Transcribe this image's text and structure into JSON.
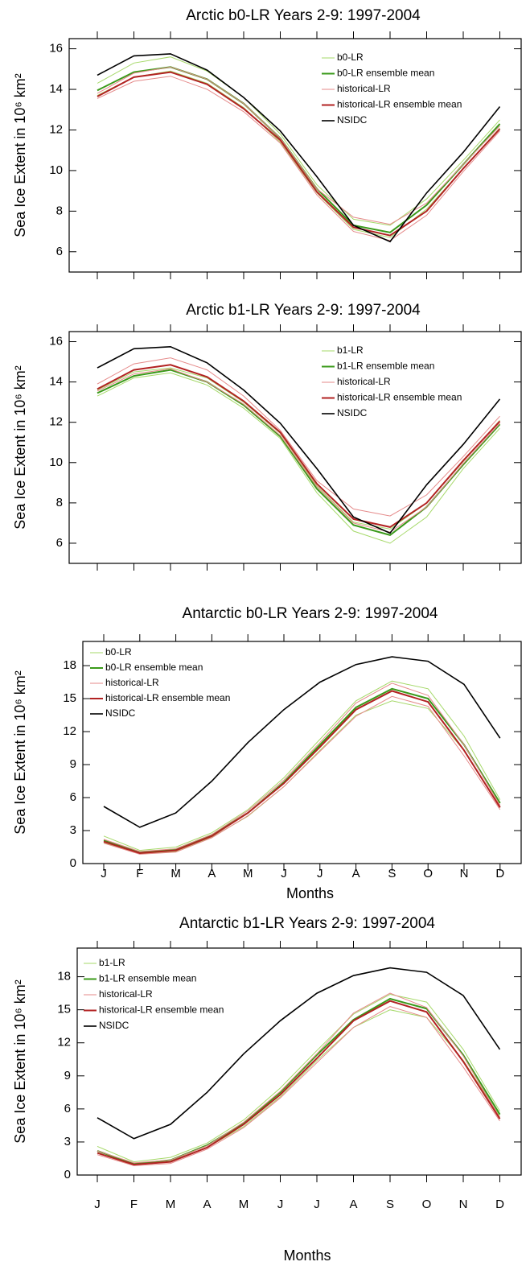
{
  "chart_data": [
    {
      "type": "line",
      "title": "Arctic b0-LR Years 2-9: 1997-2004",
      "ylabel": "Sea Ice Extent in 10⁶ km²",
      "categories": [
        null,
        null,
        null,
        null,
        null,
        null,
        null,
        null,
        null,
        null,
        null,
        null
      ],
      "ylim": [
        5,
        16.5
      ],
      "yticks": [
        6,
        8,
        10,
        12,
        14,
        16
      ],
      "legend": "upper right",
      "series": [
        {
          "name": "b0-LR",
          "color": "#a6d96a",
          "linewidth": 1,
          "values": [
            14.3,
            15.3,
            15.6,
            14.9,
            13.6,
            11.8,
            9.3,
            7.6,
            7.3,
            8.6,
            10.5,
            12.5
          ]
        },
        {
          "color": "#a6d96a",
          "linewidth": 1,
          "values": [
            13.7,
            14.6,
            14.9,
            14.3,
            13.1,
            11.4,
            8.9,
            7.1,
            6.7,
            8.1,
            10.1,
            12.1
          ]
        },
        {
          "name": "b0-LR ensemble mean",
          "color": "#3a9a1a",
          "linewidth": 2,
          "values": [
            13.95,
            14.85,
            15.1,
            14.5,
            13.3,
            11.6,
            9.1,
            7.3,
            6.95,
            8.3,
            10.3,
            12.3
          ]
        },
        {
          "name": "historical-LR",
          "color": "#e58a8a",
          "linewidth": 1,
          "values": [
            13.8,
            14.8,
            15.1,
            14.5,
            13.3,
            11.6,
            9.1,
            7.7,
            7.35,
            8.4,
            10.3,
            12.2
          ]
        },
        {
          "color": "#e58a8a",
          "linewidth": 1,
          "values": [
            13.55,
            14.4,
            14.65,
            14.0,
            12.9,
            11.35,
            8.8,
            7.0,
            6.55,
            7.8,
            9.95,
            11.95
          ]
        },
        {
          "name": "historical-LR ensemble mean",
          "color": "#b22222",
          "linewidth": 2,
          "values": [
            13.65,
            14.6,
            14.85,
            14.25,
            13.05,
            11.5,
            8.95,
            7.2,
            6.8,
            8.0,
            10.1,
            12.05
          ]
        },
        {
          "name": "NSIDC",
          "color": "#000000",
          "linewidth": 1.6,
          "values": [
            14.7,
            15.65,
            15.75,
            14.95,
            13.6,
            11.95,
            9.7,
            7.3,
            6.5,
            8.9,
            10.9,
            13.15
          ]
        }
      ]
    },
    {
      "type": "line",
      "title": "Arctic b1-LR Years 2-9: 1997-2004",
      "ylabel": "Sea Ice Extent in 10⁶ km²",
      "categories": [
        null,
        null,
        null,
        null,
        null,
        null,
        null,
        null,
        null,
        null,
        null,
        null
      ],
      "ylim": [
        5,
        16.5
      ],
      "yticks": [
        6,
        8,
        10,
        12,
        14,
        16
      ],
      "legend": "upper right",
      "series": [
        {
          "name": "b1-LR",
          "color": "#a6d96a",
          "linewidth": 1,
          "values": [
            13.6,
            14.5,
            14.7,
            14.2,
            13.0,
            11.45,
            8.85,
            7.05,
            6.7,
            8.0,
            10.05,
            12.1
          ]
        },
        {
          "color": "#a6d96a",
          "linewidth": 1,
          "values": [
            13.3,
            14.2,
            14.45,
            13.85,
            12.7,
            11.2,
            8.5,
            6.6,
            6.0,
            7.3,
            9.7,
            11.7
          ]
        },
        {
          "name": "b1-LR ensemble mean",
          "color": "#3a9a1a",
          "linewidth": 2,
          "values": [
            13.45,
            14.3,
            14.6,
            14.0,
            12.85,
            11.3,
            8.7,
            6.9,
            6.4,
            7.8,
            9.9,
            11.9
          ]
        },
        {
          "name": "historical-LR",
          "color": "#e58a8a",
          "linewidth": 1,
          "values": [
            13.9,
            14.9,
            15.2,
            14.6,
            13.3,
            11.6,
            9.1,
            7.7,
            7.35,
            8.4,
            10.3,
            12.3
          ]
        },
        {
          "color": "#e58a8a",
          "linewidth": 1,
          "values": [
            13.55,
            14.4,
            14.65,
            14.0,
            12.9,
            11.35,
            8.8,
            7.0,
            6.55,
            7.8,
            9.95,
            11.95
          ]
        },
        {
          "name": "historical-LR ensemble mean",
          "color": "#b22222",
          "linewidth": 2,
          "values": [
            13.65,
            14.6,
            14.85,
            14.25,
            13.05,
            11.5,
            8.95,
            7.2,
            6.8,
            8.0,
            10.1,
            12.05
          ]
        },
        {
          "name": "NSIDC",
          "color": "#000000",
          "linewidth": 1.6,
          "values": [
            14.7,
            15.65,
            15.75,
            14.95,
            13.6,
            11.95,
            9.7,
            7.3,
            6.5,
            8.9,
            10.9,
            13.15
          ]
        }
      ]
    },
    {
      "type": "line",
      "title": "Antarctic b0-LR Years 2-9: 1997-2004",
      "ylabel": "Sea Ice Extent in 10⁶ km²",
      "xlabel": "Months",
      "categories": [
        "J",
        "F",
        "M",
        "A",
        "M",
        "J",
        "J",
        "A",
        "S",
        "O",
        "N",
        "D"
      ],
      "ylim": [
        0,
        20.2
      ],
      "yticks": [
        0,
        3,
        6,
        9,
        12,
        15,
        18
      ],
      "legend": "upper left",
      "series": [
        {
          "name": "b0-LR",
          "color": "#a6d96a",
          "linewidth": 1,
          "values": [
            2.5,
            1.2,
            1.5,
            2.8,
            4.9,
            7.8,
            11.3,
            14.8,
            16.6,
            15.9,
            11.6,
            5.8
          ]
        },
        {
          "color": "#a6d96a",
          "linewidth": 1,
          "values": [
            1.9,
            0.9,
            1.1,
            2.4,
            4.3,
            7.0,
            10.3,
            13.5,
            14.8,
            14.1,
            10.3,
            5.2
          ]
        },
        {
          "name": "b0-LR ensemble mean",
          "color": "#3a9a1a",
          "linewidth": 2,
          "values": [
            2.1,
            1.0,
            1.3,
            2.6,
            4.6,
            7.4,
            10.8,
            14.2,
            15.9,
            15.0,
            10.8,
            5.5
          ]
        },
        {
          "name": "historical-LR",
          "color": "#e58a8a",
          "linewidth": 1,
          "values": [
            2.2,
            1.1,
            1.35,
            2.65,
            4.8,
            7.6,
            11.0,
            14.6,
            16.4,
            15.3,
            10.8,
            5.3
          ]
        },
        {
          "color": "#e58a8a",
          "linewidth": 1,
          "values": [
            1.85,
            0.85,
            1.05,
            2.35,
            4.35,
            7.0,
            10.2,
            13.4,
            15.2,
            14.3,
            9.8,
            4.9
          ]
        },
        {
          "name": "historical-LR ensemble mean",
          "color": "#b22222",
          "linewidth": 2,
          "values": [
            2.0,
            0.95,
            1.2,
            2.5,
            4.6,
            7.3,
            10.6,
            14.0,
            15.7,
            14.7,
            10.3,
            5.1
          ]
        },
        {
          "name": "NSIDC",
          "color": "#000000",
          "linewidth": 1.6,
          "values": [
            5.2,
            3.3,
            4.6,
            7.5,
            11.0,
            14.0,
            16.5,
            18.1,
            18.8,
            18.4,
            16.3,
            11.4
          ]
        }
      ]
    },
    {
      "type": "line",
      "title": "Antarctic b1-LR Years 2-9: 1997-2004",
      "ylabel": "Sea Ice Extent in 10⁶ km²",
      "xlabel": "Months",
      "categories": [
        "J",
        "F",
        "M",
        "A",
        "M",
        "J",
        "J",
        "A",
        "S",
        "O",
        "N",
        "D"
      ],
      "ylim": [
        0,
        20.6
      ],
      "yticks": [
        0,
        3,
        6,
        9,
        12,
        15,
        18
      ],
      "legend": "upper left",
      "series": [
        {
          "name": "b1-LR",
          "color": "#a6d96a",
          "linewidth": 1,
          "values": [
            2.6,
            1.2,
            1.6,
            2.9,
            5.0,
            7.9,
            11.3,
            14.6,
            16.4,
            15.7,
            11.4,
            5.8
          ]
        },
        {
          "color": "#a6d96a",
          "linewidth": 1,
          "values": [
            2.0,
            0.9,
            1.2,
            2.5,
            4.4,
            7.1,
            10.4,
            13.4,
            15.0,
            14.3,
            10.4,
            5.3
          ]
        },
        {
          "name": "b1-LR ensemble mean",
          "color": "#3a9a1a",
          "linewidth": 2,
          "values": [
            2.2,
            1.0,
            1.35,
            2.7,
            4.7,
            7.5,
            10.9,
            14.1,
            16.0,
            15.1,
            10.9,
            5.5
          ]
        },
        {
          "name": "historical-LR",
          "color": "#e58a8a",
          "linewidth": 1,
          "values": [
            2.2,
            1.1,
            1.35,
            2.65,
            4.8,
            7.6,
            11.0,
            14.7,
            16.5,
            15.2,
            10.8,
            5.2
          ]
        },
        {
          "color": "#e58a8a",
          "linewidth": 1,
          "values": [
            1.85,
            0.85,
            1.05,
            2.35,
            4.3,
            7.0,
            10.2,
            13.4,
            15.3,
            14.3,
            9.8,
            4.9
          ]
        },
        {
          "name": "historical-LR ensemble mean",
          "color": "#b22222",
          "linewidth": 2,
          "values": [
            2.0,
            0.95,
            1.2,
            2.5,
            4.6,
            7.3,
            10.6,
            14.0,
            15.8,
            14.8,
            10.3,
            5.1
          ]
        },
        {
          "name": "NSIDC",
          "color": "#000000",
          "linewidth": 1.6,
          "values": [
            5.2,
            3.3,
            4.6,
            7.5,
            11.0,
            14.0,
            16.5,
            18.1,
            18.8,
            18.4,
            16.3,
            11.4
          ]
        }
      ]
    }
  ]
}
